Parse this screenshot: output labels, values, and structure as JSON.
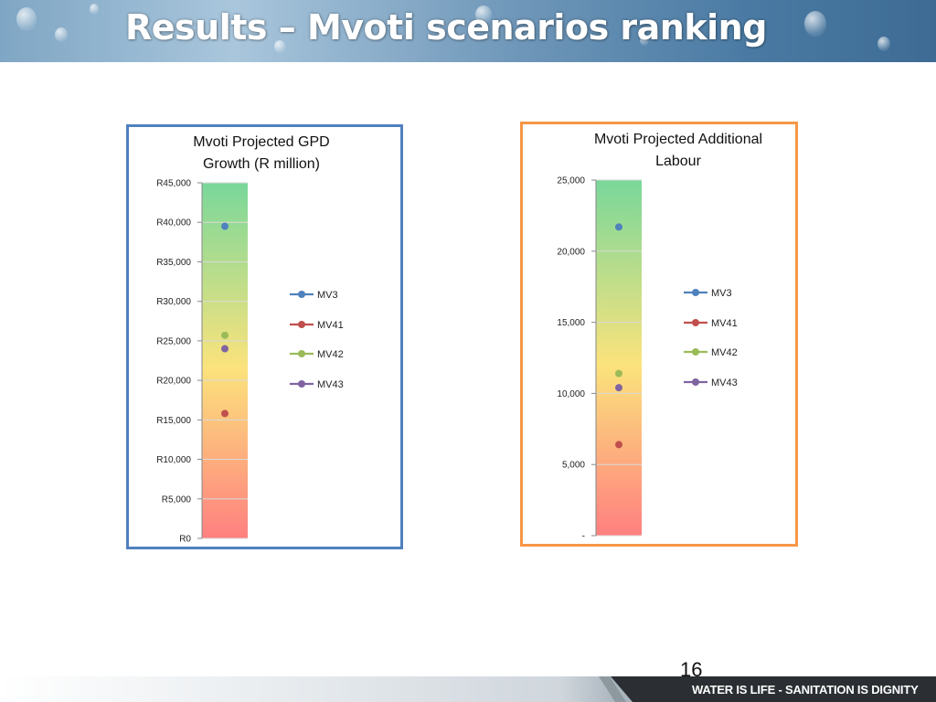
{
  "slide": {
    "title": "Results – Mvoti scenarios ranking",
    "page_number": "16",
    "footer_text": "WATER IS LIFE - SANITATION IS DIGNITY"
  },
  "colors": {
    "MV3": "#4f81bd",
    "MV41": "#c0504d",
    "MV42": "#9bbb59",
    "MV43": "#8064a2",
    "gdp_border": "#4f81bd",
    "labour_border": "#f79646",
    "gradient_top": "#79d79a",
    "gradient_mid": "#fbe37c",
    "gradient_bottom": "#ff8080"
  },
  "chart_data": [
    {
      "type": "scatter",
      "title_lines": [
        "Mvoti Projected GPD",
        "Growth (R million)"
      ],
      "ylim": [
        0,
        45000
      ],
      "yticks": [
        0,
        5000,
        10000,
        15000,
        20000,
        25000,
        30000,
        35000,
        40000,
        45000
      ],
      "ytick_labels": [
        "R0",
        "R5,000",
        "R10,000",
        "R15,000",
        "R20,000",
        "R25,000",
        "R30,000",
        "R35,000",
        "R40,000",
        "R45,000"
      ],
      "grid": true,
      "legend_position": "right",
      "series": [
        {
          "name": "MV3",
          "values": [
            39500
          ]
        },
        {
          "name": "MV41",
          "values": [
            15800
          ]
        },
        {
          "name": "MV42",
          "values": [
            25700
          ]
        },
        {
          "name": "MV43",
          "values": [
            24000
          ]
        }
      ]
    },
    {
      "type": "scatter",
      "title_lines": [
        "Mvoti Projected Additional",
        "Labour"
      ],
      "ylim": [
        0,
        25000
      ],
      "yticks": [
        0,
        5000,
        10000,
        15000,
        20000,
        25000
      ],
      "ytick_labels": [
        "-",
        "5,000",
        "10,000",
        "15,000",
        "20,000",
        "25,000"
      ],
      "grid": true,
      "legend_position": "right",
      "series": [
        {
          "name": "MV3",
          "values": [
            21700
          ]
        },
        {
          "name": "MV41",
          "values": [
            6400
          ]
        },
        {
          "name": "MV42",
          "values": [
            11400
          ]
        },
        {
          "name": "MV43",
          "values": [
            10400
          ]
        }
      ]
    }
  ]
}
